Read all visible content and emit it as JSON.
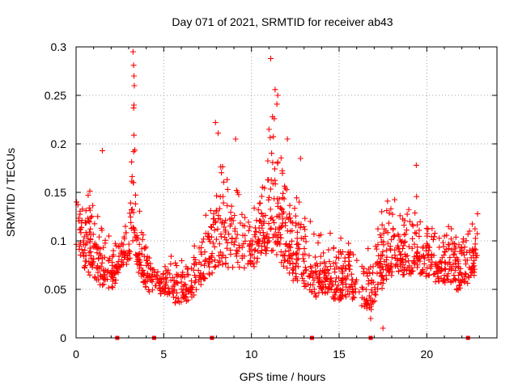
{
  "chart_data": {
    "type": "scatter",
    "title": "Day 071 of 2021, SRMTID for receiver ab43",
    "xlabel": "GPS time / hours",
    "ylabel": "SRMTID / TECUs",
    "xlim": [
      0,
      24
    ],
    "ylim": [
      0,
      0.3
    ],
    "xticks": [
      0,
      5,
      10,
      15,
      20
    ],
    "xtick_labels": [
      "0",
      "5",
      "10",
      "15",
      "20"
    ],
    "yticks": [
      0,
      0.05,
      0.1,
      0.15,
      0.2,
      0.25,
      0.3
    ],
    "ytick_labels": [
      "0",
      "0.05",
      "0.1",
      "0.15",
      "0.2",
      "0.25",
      "0.3"
    ],
    "grid": true,
    "marker_color": "#ff0000",
    "series": [
      {
        "name": "SRMTID",
        "marker": "plus",
        "envelope_hours": [
          0,
          0.5,
          1,
          1.5,
          2,
          2.5,
          3,
          3.3,
          3.5,
          4,
          4.5,
          5,
          5.5,
          6,
          6.5,
          7,
          7.5,
          8,
          8.5,
          9,
          9.5,
          10,
          10.5,
          11,
          11.5,
          12,
          12.5,
          13,
          13.5,
          14,
          14.5,
          15,
          15.5,
          16,
          16.5,
          17,
          17.5,
          18,
          18.5,
          19,
          19.5,
          20,
          20.5,
          21,
          21.5,
          22,
          22.5,
          23
        ],
        "envelope_low": [
          0.06,
          0.06,
          0.05,
          0.04,
          0.04,
          0.06,
          0.07,
          0.07,
          0.06,
          0.04,
          0.04,
          0.04,
          0.03,
          0.03,
          0.03,
          0.04,
          0.05,
          0.05,
          0.05,
          0.06,
          0.06,
          0.06,
          0.07,
          0.07,
          0.07,
          0.05,
          0.04,
          0.04,
          0.03,
          0.03,
          0.03,
          0.03,
          0.03,
          0.03,
          0.02,
          0.02,
          0.04,
          0.05,
          0.05,
          0.05,
          0.05,
          0.05,
          0.05,
          0.05,
          0.04,
          0.04,
          0.05,
          0.06
        ],
        "envelope_high": [
          0.18,
          0.18,
          0.16,
          0.14,
          0.12,
          0.12,
          0.14,
          0.295,
          0.15,
          0.13,
          0.1,
          0.09,
          0.09,
          0.09,
          0.1,
          0.12,
          0.16,
          0.22,
          0.2,
          0.19,
          0.17,
          0.16,
          0.17,
          0.25,
          0.24,
          0.2,
          0.16,
          0.14,
          0.13,
          0.13,
          0.12,
          0.12,
          0.11,
          0.11,
          0.1,
          0.12,
          0.16,
          0.17,
          0.16,
          0.17,
          0.17,
          0.15,
          0.12,
          0.12,
          0.14,
          0.13,
          0.14,
          0.15
        ],
        "extreme_points": [
          [
            3.25,
            0.295
          ],
          [
            3.28,
            0.281
          ],
          [
            3.3,
            0.27
          ],
          [
            3.32,
            0.26
          ],
          [
            3.3,
            0.24
          ],
          [
            3.28,
            0.237
          ],
          [
            3.3,
            0.209
          ],
          [
            3.28,
            0.192
          ],
          [
            11.1,
            0.288
          ],
          [
            11.35,
            0.256
          ],
          [
            11.5,
            0.25
          ],
          [
            11.45,
            0.241
          ],
          [
            11.2,
            0.228
          ],
          [
            11.3,
            0.226
          ],
          [
            11.0,
            0.215
          ],
          [
            7.95,
            0.222
          ],
          [
            8.1,
            0.211
          ],
          [
            9.1,
            0.205
          ],
          [
            12.05,
            0.205
          ],
          [
            12.8,
            0.185
          ],
          [
            1.5,
            0.193
          ],
          [
            19.4,
            0.178
          ],
          [
            17.5,
            0.01
          ],
          [
            16.8,
            0.02
          ]
        ]
      }
    ],
    "marked_hours": [
      2.35,
      4.45,
      7.75,
      13.45,
      16.8,
      22.35
    ]
  }
}
